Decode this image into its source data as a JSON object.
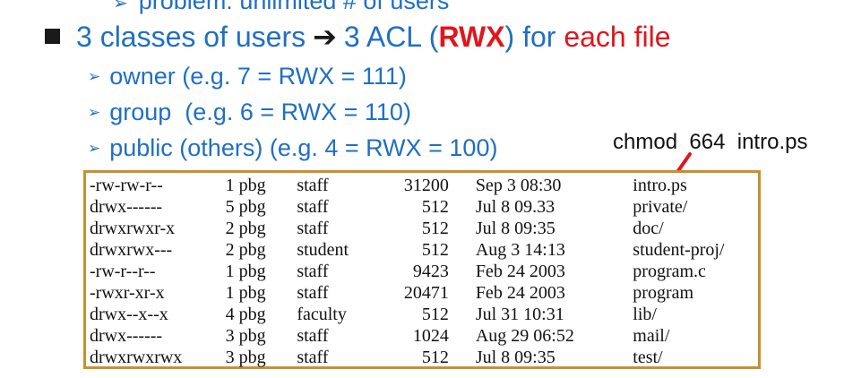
{
  "cut_line": {
    "arrow": "➢",
    "text": "problem: unlimited # of users"
  },
  "main_bullet": {
    "part1": "3 classes of users",
    "arrow": "➔",
    "part2": "3 ACL (",
    "rwx": "RWX",
    "part3": ") for ",
    "red_text": "each file"
  },
  "sub_bullets": [
    {
      "arrow": "➢",
      "text": "owner (e.g. 7 = RWX = 111)"
    },
    {
      "arrow": "➢",
      "text": "group  (e.g. 6 = RWX = 110)"
    },
    {
      "arrow": "➢",
      "text": "public (others) (e.g. 4 = RWX = 100)"
    }
  ],
  "chmod_note": "chmod  664  intro.ps",
  "listing": [
    {
      "perm": "-rw-rw-r--",
      "links": "1 pbg",
      "group": "staff",
      "size": "31200",
      "date": "Sep 3 08:30",
      "name": "intro.ps"
    },
    {
      "perm": "drwx------",
      "links": "5 pbg",
      "group": "staff",
      "size": "512",
      "date": "Jul 8 09.33",
      "name": "private/"
    },
    {
      "perm": "drwxrwxr-x",
      "links": "2 pbg",
      "group": "staff",
      "size": "512",
      "date": "Jul 8 09:35",
      "name": "doc/"
    },
    {
      "perm": "drwxrwx---",
      "links": "2 pbg",
      "group": "student",
      "size": "512",
      "date": "Aug 3 14:13",
      "name": "student-proj/"
    },
    {
      "perm": "-rw-r--r--",
      "links": "1 pbg",
      "group": "staff",
      "size": "9423",
      "date": "Feb 24 2003",
      "name": "program.c"
    },
    {
      "perm": "-rwxr-xr-x",
      "links": "1 pbg",
      "group": "staff",
      "size": "20471",
      "date": "Feb 24 2003",
      "name": "program"
    },
    {
      "perm": "drwx--x--x",
      "links": "4 pbg",
      "group": "faculty",
      "size": "512",
      "date": "Jul 31 10:31",
      "name": "lib/"
    },
    {
      "perm": "drwx------",
      "links": "3 pbg",
      "group": "staff",
      "size": "1024",
      "date": "Aug 29 06:52",
      "name": "mail/"
    },
    {
      "perm": "drwxrwxrwx",
      "links": "3 pbg",
      "group": "staff",
      "size": "512",
      "date": "Jul 8 09:35",
      "name": "test/"
    }
  ],
  "colors": {
    "blue_text": "#1f6fc4",
    "red": "#e0161b",
    "table_border": "#c8902e"
  }
}
